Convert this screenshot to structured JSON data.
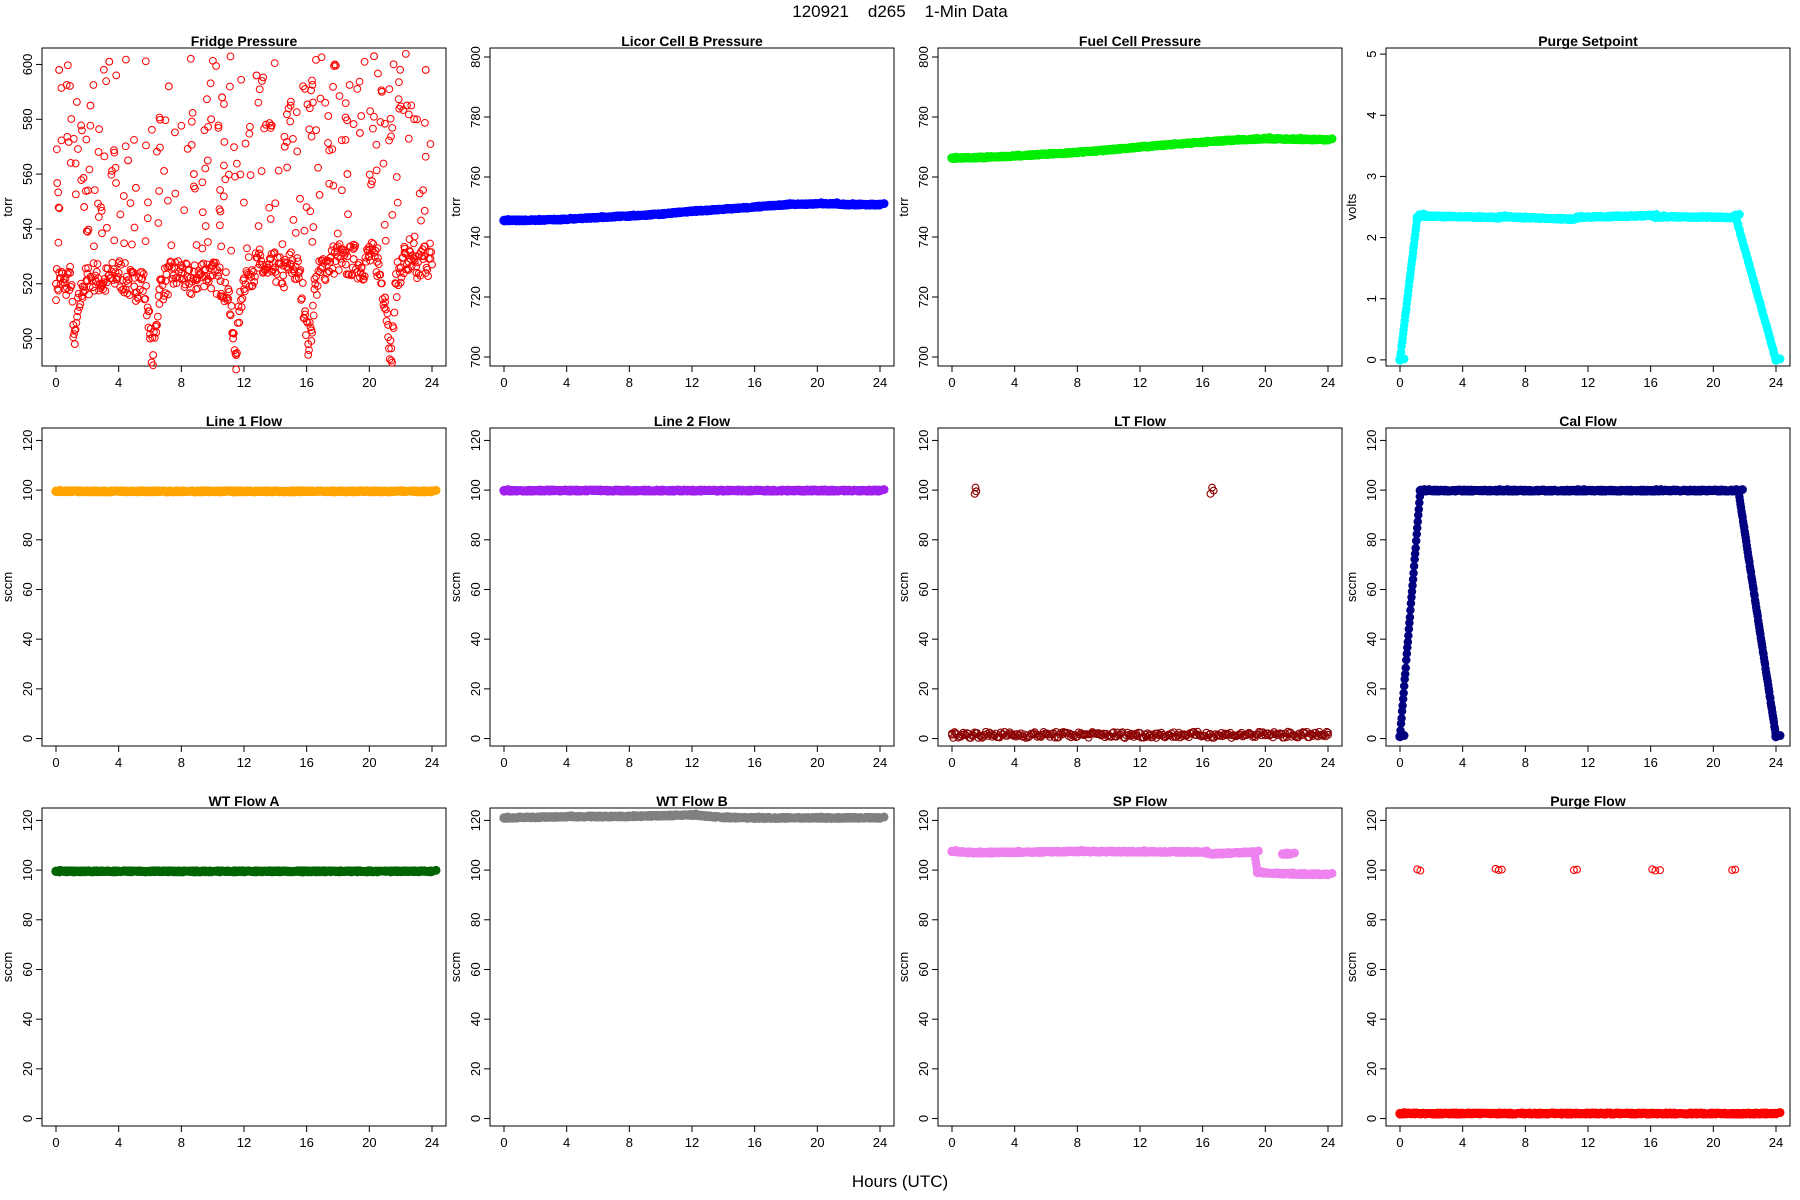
{
  "figure": {
    "title": "120921    d265    1-Min Data",
    "xlabel": "Hours (UTC)"
  },
  "chart_data": [
    {
      "type": "scatter",
      "title": "Fridge Pressure",
      "ylabel": "torr",
      "xlim": [
        0,
        24
      ],
      "ylim": [
        490,
        606
      ],
      "xticks": [
        0,
        4,
        8,
        12,
        16,
        20,
        24
      ],
      "yticks": [
        500,
        520,
        540,
        560,
        580,
        600
      ],
      "series": [
        {
          "color": "#ff0000",
          "marker": "open-circle",
          "x": [
            0.0,
            0.3,
            0.6,
            0.9,
            1.1,
            1.2,
            1.4,
            1.7,
            2.0,
            2.5,
            3.0,
            3.5,
            4.0,
            4.5,
            5.0,
            5.5,
            5.9,
            6.0,
            6.2,
            6.4,
            6.6,
            7.0,
            7.5,
            8.0,
            8.5,
            9.0,
            9.5,
            10.0,
            10.5,
            11.0,
            11.3,
            11.5,
            11.7,
            12.0,
            12.5,
            13.0,
            13.5,
            14.0,
            14.5,
            15.0,
            15.5,
            15.9,
            16.1,
            16.3,
            16.5,
            17.0,
            17.5,
            18.0,
            18.5,
            19.0,
            19.5,
            20.0,
            20.5,
            21.0,
            21.2,
            21.4,
            21.7,
            22.0,
            22.5,
            23.0,
            23.5,
            24.0,
            0.2,
            2.2,
            3.4,
            5.1,
            7.2,
            8.8,
            9.9,
            12.8,
            14.6,
            17.8,
            19.4,
            20.8,
            22.4,
            23.6,
            1.8,
            4.6,
            10.6,
            13.4,
            18.6,
            20.3
          ],
          "y": [
            520,
            522,
            518,
            524,
            505,
            498,
            510,
            519,
            521,
            523,
            520,
            522,
            524,
            521,
            519,
            522,
            510,
            500,
            494,
            505,
            518,
            521,
            523,
            524,
            520,
            522,
            525,
            523,
            521,
            518,
            500,
            494,
            510,
            522,
            525,
            527,
            524,
            526,
            523,
            527,
            524,
            510,
            498,
            503,
            518,
            526,
            528,
            530,
            527,
            529,
            526,
            530,
            528,
            515,
            505,
            492,
            520,
            526,
            528,
            524,
            530,
            527,
            598,
            585,
            601,
            555,
            592,
            560,
            580,
            596,
            570,
            600,
            575,
            590,
            585,
            598,
            548,
            565,
            588,
            578,
            560,
            603
          ]
        }
      ]
    },
    {
      "type": "scatter",
      "title": "Licor Cell B Pressure",
      "ylabel": "torr",
      "xlim": [
        0,
        24
      ],
      "ylim": [
        697,
        803
      ],
      "xticks": [
        0,
        4,
        8,
        12,
        16,
        20,
        24
      ],
      "yticks": [
        700,
        720,
        740,
        760,
        780,
        800
      ],
      "series": [
        {
          "color": "#0000ff",
          "marker": "filled-dense",
          "x": [
            0,
            2,
            4,
            6,
            8,
            10,
            12,
            14,
            16,
            18,
            20,
            21,
            22,
            24
          ],
          "y": [
            745.5,
            745.6,
            745.9,
            746.5,
            747.0,
            747.6,
            748.6,
            749.2,
            750.0,
            750.8,
            751.1,
            751.1,
            750.8,
            750.8
          ]
        }
      ]
    },
    {
      "type": "scatter",
      "title": "Fuel Cell Pressure",
      "ylabel": "torr",
      "xlim": [
        0,
        24
      ],
      "ylim": [
        697,
        803
      ],
      "xticks": [
        0,
        4,
        8,
        12,
        16,
        20,
        24
      ],
      "yticks": [
        700,
        720,
        740,
        760,
        780,
        800
      ],
      "series": [
        {
          "color": "#00ee00",
          "marker": "filled-dense",
          "x": [
            0,
            2,
            4,
            6,
            8,
            10,
            12,
            14,
            16,
            18,
            20,
            22,
            24
          ],
          "y": [
            766.3,
            766.5,
            767.0,
            767.6,
            768.2,
            769.0,
            770.0,
            770.8,
            771.6,
            772.3,
            772.8,
            772.6,
            772.4
          ]
        }
      ]
    },
    {
      "type": "scatter",
      "title": "Purge Setpoint",
      "ylabel": "volts",
      "xlim": [
        0,
        24
      ],
      "ylim": [
        -0.1,
        5.1
      ],
      "xticks": [
        0,
        4,
        8,
        12,
        16,
        20,
        24
      ],
      "yticks": [
        0,
        1,
        2,
        3,
        4,
        5
      ],
      "series": [
        {
          "color": "#00ffff",
          "marker": "filled-dense",
          "x": [
            0,
            1.1,
            1.25,
            1.4,
            6.1,
            6.3,
            6.45,
            11.1,
            11.3,
            16.1,
            16.3,
            16.6,
            21.2,
            21.4,
            24
          ],
          "y": [
            0,
            2.33,
            2.37,
            2.35,
            2.33,
            2.32,
            2.34,
            2.3,
            2.33,
            2.36,
            2.33,
            2.34,
            2.33,
            2.36,
            0
          ]
        }
      ]
    },
    {
      "type": "scatter",
      "title": "Line 1 Flow",
      "ylabel": "sccm",
      "xlim": [
        0,
        24
      ],
      "ylim": [
        -3,
        125
      ],
      "xticks": [
        0,
        4,
        8,
        12,
        16,
        20,
        24
      ],
      "yticks": [
        0,
        20,
        40,
        60,
        80,
        100,
        120
      ],
      "series": [
        {
          "color": "#ffa500",
          "marker": "filled-dense",
          "x": [
            0,
            24
          ],
          "y": [
            99.5,
            99.5
          ]
        }
      ]
    },
    {
      "type": "scatter",
      "title": "Line 2 Flow",
      "ylabel": "sccm",
      "xlim": [
        0,
        24
      ],
      "ylim": [
        -3,
        125
      ],
      "xticks": [
        0,
        4,
        8,
        12,
        16,
        20,
        24
      ],
      "yticks": [
        0,
        20,
        40,
        60,
        80,
        100,
        120
      ],
      "series": [
        {
          "color": "#a020f0",
          "marker": "filled-dense",
          "x": [
            0,
            24
          ],
          "y": [
            99.8,
            99.8
          ]
        }
      ]
    },
    {
      "type": "scatter",
      "title": "LT Flow",
      "ylabel": "sccm",
      "xlim": [
        0,
        24
      ],
      "ylim": [
        -3,
        125
      ],
      "xticks": [
        0,
        4,
        8,
        12,
        16,
        20,
        24
      ],
      "yticks": [
        0,
        20,
        40,
        60,
        80,
        100,
        120
      ],
      "series": [
        {
          "color": "#8b0000",
          "marker": "open-circle",
          "x": [
            0,
            1.45,
            1.5,
            1.55,
            16.5,
            16.6,
            16.7,
            24
          ],
          "y": [
            1.5,
            98.5,
            101,
            99.5,
            98.5,
            101,
            99.8,
            1.5
          ]
        }
      ]
    },
    {
      "type": "scatter",
      "title": "Cal Flow",
      "ylabel": "sccm",
      "xlim": [
        0,
        24
      ],
      "ylim": [
        -3,
        125
      ],
      "xticks": [
        0,
        4,
        8,
        12,
        16,
        20,
        24
      ],
      "yticks": [
        0,
        20,
        40,
        60,
        80,
        100,
        120
      ],
      "series": [
        {
          "color": "#000080",
          "marker": "filled-dense",
          "x": [
            0,
            1.3,
            1.6,
            6.1,
            6.6,
            11.1,
            11.5,
            16.1,
            16.4,
            21.2,
            21.6,
            24
          ],
          "y": [
            0.8,
            99.8,
            99.8,
            99.8,
            99.8,
            99.8,
            99.8,
            99.8,
            99.8,
            99.8,
            99.8,
            0.8
          ]
        }
      ]
    },
    {
      "type": "scatter",
      "title": "WT Flow A",
      "ylabel": "sccm",
      "xlim": [
        0,
        24
      ],
      "ylim": [
        -3,
        125
      ],
      "xticks": [
        0,
        4,
        8,
        12,
        16,
        20,
        24
      ],
      "yticks": [
        0,
        20,
        40,
        60,
        80,
        100,
        120
      ],
      "series": [
        {
          "color": "#006400",
          "marker": "filled-dense",
          "x": [
            0,
            24
          ],
          "y": [
            99.5,
            99.5
          ]
        }
      ]
    },
    {
      "type": "scatter",
      "title": "WT Flow B",
      "ylabel": "sccm",
      "xlim": [
        0,
        24
      ],
      "ylim": [
        -3,
        125
      ],
      "xticks": [
        0,
        4,
        8,
        12,
        16,
        20,
        24
      ],
      "yticks": [
        0,
        20,
        40,
        60,
        80,
        100,
        120
      ],
      "series": [
        {
          "color": "#808080",
          "marker": "filled-dense",
          "x": [
            0,
            4,
            8,
            12,
            14,
            16,
            20,
            24
          ],
          "y": [
            121,
            121.5,
            121.6,
            122.2,
            121.2,
            121,
            121,
            121
          ]
        }
      ]
    },
    {
      "type": "scatter",
      "title": "SP Flow",
      "ylabel": "sccm",
      "xlim": [
        0,
        24
      ],
      "ylim": [
        -3,
        125
      ],
      "xticks": [
        0,
        4,
        8,
        12,
        16,
        20,
        24
      ],
      "yticks": [
        0,
        20,
        40,
        60,
        80,
        100,
        120
      ],
      "series": [
        {
          "color": "#ee82ee",
          "marker": "filled-dense",
          "x": [
            0,
            1.5,
            4,
            8,
            12,
            16,
            16.6,
            19.3,
            19.5,
            21.5,
            24
          ],
          "y": [
            107.5,
            107,
            107.2,
            107.5,
            107.4,
            107.3,
            106.5,
            107.3,
            99,
            98.5,
            98.3
          ]
        },
        {
          "color": "#ee82ee",
          "marker": "filled-dense",
          "x": [
            21.1,
            21.6
          ],
          "y": [
            106.5,
            106.5
          ]
        }
      ]
    },
    {
      "type": "scatter",
      "title": "Purge Flow",
      "ylabel": "sccm",
      "xlim": [
        0,
        24
      ],
      "ylim": [
        -3,
        125
      ],
      "xticks": [
        0,
        4,
        8,
        12,
        16,
        20,
        24
      ],
      "yticks": [
        0,
        20,
        40,
        60,
        80,
        100,
        120
      ],
      "series": [
        {
          "color": "#ff0000",
          "marker": "filled-dense",
          "x": [
            0,
            24
          ],
          "y": [
            2,
            2
          ]
        },
        {
          "color": "#ff0000",
          "marker": "open-circle",
          "x": [
            1.1,
            1.3,
            6.1,
            6.3,
            6.5,
            11.1,
            11.3,
            16.1,
            16.3,
            16.6,
            21.2,
            21.4
          ],
          "y": [
            100.3,
            99.8,
            100.5,
            100,
            100.2,
            100,
            100.2,
            100.3,
            99.8,
            100,
            100,
            100.2
          ]
        }
      ]
    }
  ]
}
